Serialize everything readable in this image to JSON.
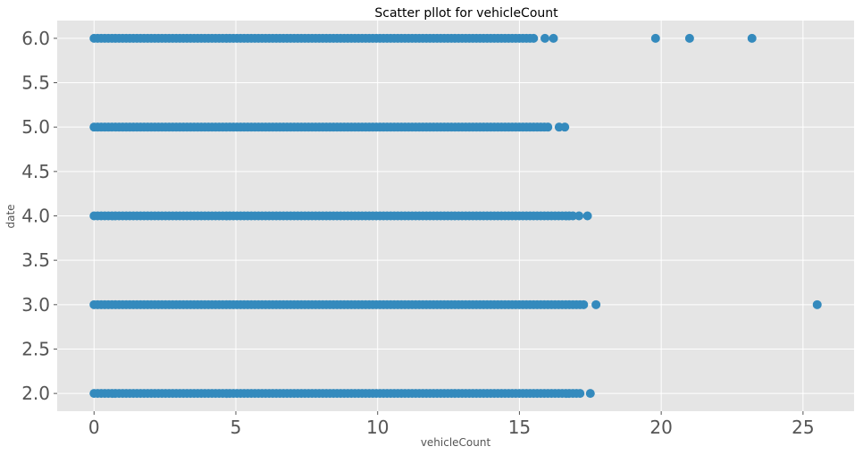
{
  "chart_data": {
    "type": "scatter",
    "title": "Scatter pllot for vehicleCount",
    "xlabel": "vehicleCount",
    "ylabel": "date",
    "xlim": [
      -1.3,
      26.8
    ],
    "ylim": [
      1.8,
      6.2
    ],
    "xticks": [
      0,
      5,
      10,
      15,
      20,
      25
    ],
    "xtick_labels": [
      "0",
      "5",
      "10",
      "15",
      "20",
      "25"
    ],
    "yticks": [
      2.0,
      2.5,
      3.0,
      3.5,
      4.0,
      4.5,
      5.0,
      5.5,
      6.0
    ],
    "ytick_labels": [
      "2.0",
      "2.5",
      "3.0",
      "3.5",
      "4.0",
      "4.5",
      "5.0",
      "5.5",
      "6.0"
    ],
    "grid": true,
    "style": "ggplot",
    "marker_color": "#348abd",
    "background_color": "#e5e5e5",
    "series": [
      {
        "points_dense": [
          {
            "y": 6.0,
            "x_from": 0.0,
            "x_to": 15.5
          },
          {
            "y": 5.0,
            "x_from": 0.0,
            "x_to": 16.1
          },
          {
            "y": 4.0,
            "x_from": 0.0,
            "x_to": 16.9
          },
          {
            "y": 3.0,
            "x_from": 0.0,
            "x_to": 17.3
          },
          {
            "y": 2.0,
            "x_from": 0.0,
            "x_to": 17.2
          }
        ],
        "points": [
          {
            "x": 15.9,
            "y": 6.0
          },
          {
            "x": 16.2,
            "y": 6.0
          },
          {
            "x": 19.8,
            "y": 6.0
          },
          {
            "x": 21.0,
            "y": 6.0
          },
          {
            "x": 23.2,
            "y": 6.0
          },
          {
            "x": 16.4,
            "y": 5.0
          },
          {
            "x": 16.6,
            "y": 5.0
          },
          {
            "x": 17.1,
            "y": 4.0
          },
          {
            "x": 17.4,
            "y": 4.0
          },
          {
            "x": 17.7,
            "y": 3.0
          },
          {
            "x": 25.5,
            "y": 3.0
          },
          {
            "x": 17.5,
            "y": 2.0
          }
        ]
      }
    ]
  }
}
